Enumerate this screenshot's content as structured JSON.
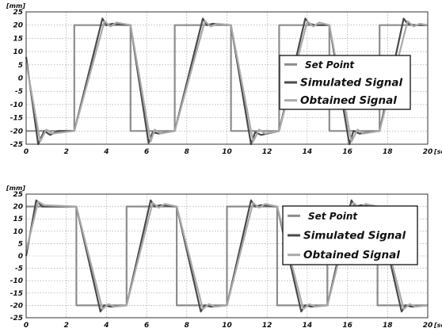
{
  "chart_data": [
    {
      "type": "line",
      "ylabel": "[mm]",
      "xlabel": "[seg]",
      "xlim": [
        0,
        20
      ],
      "ylim": [
        -25,
        25
      ],
      "xticks": [
        0,
        2,
        4,
        6,
        8,
        10,
        12,
        14,
        16,
        18,
        20
      ],
      "yticks": [
        25,
        20,
        15,
        10,
        5,
        0,
        -5,
        -10,
        -15,
        -20,
        -25
      ],
      "grid": true,
      "legend": "right",
      "series": [
        {
          "name": "Set Point",
          "color": "#8c8c8c",
          "x": [
            0,
            2.4,
            2.4,
            5.2,
            5.2,
            7.4,
            7.4,
            10.2,
            10.2,
            12.6,
            12.6,
            15.1,
            15.1,
            17.6,
            17.6,
            20
          ],
          "y": [
            -20,
            -20,
            20,
            20,
            -20,
            -20,
            20,
            20,
            -20,
            -20,
            20,
            20,
            -20,
            -20,
            20,
            20
          ]
        },
        {
          "name": "Simulated Signal",
          "color": "#4a4a4a",
          "x": [
            0,
            0.6,
            0.9,
            1.2,
            1.6,
            2.4,
            3.8,
            4.0,
            4.3,
            5.2,
            6.1,
            6.3,
            6.6,
            7.4,
            8.8,
            9.0,
            9.3,
            10.2,
            11.2,
            11.4,
            11.7,
            12.6,
            13.9,
            14.1,
            14.4,
            15.1,
            16.1,
            16.3,
            16.6,
            17.6,
            18.8,
            19.0,
            19.3,
            20
          ],
          "y": [
            8,
            -25,
            -20,
            -21.5,
            -20,
            -20,
            22.5,
            20,
            20.5,
            20,
            -24.5,
            -20.5,
            -21,
            -20,
            22.5,
            20,
            20.5,
            20,
            -25,
            -20.5,
            -21.5,
            -20,
            22.5,
            20.5,
            20,
            20,
            -25,
            -20,
            -21,
            -20,
            22.5,
            20.5,
            20,
            20
          ]
        },
        {
          "name": "Obtained Signal",
          "color": "#aaaaaa",
          "x": [
            0,
            0.7,
            1.0,
            1.3,
            2.4,
            3.9,
            4.2,
            4.5,
            5.2,
            6.2,
            6.4,
            6.7,
            7.4,
            8.9,
            9.2,
            9.5,
            10.2,
            11.3,
            11.6,
            11.9,
            12.6,
            14.0,
            14.3,
            14.6,
            15.1,
            16.2,
            16.5,
            16.8,
            17.6,
            19.0,
            19.3,
            19.6,
            20
          ],
          "y": [
            6,
            -24,
            -19.5,
            -21,
            -20,
            21.5,
            19.5,
            21,
            20,
            -24,
            -19.5,
            -21,
            -20,
            21.5,
            19.5,
            20.5,
            20,
            -24,
            -19.5,
            -21,
            -20,
            21.5,
            19.5,
            21,
            20,
            -24,
            -19.5,
            -21,
            -20,
            21.5,
            19.5,
            20.5,
            20
          ]
        }
      ]
    },
    {
      "type": "line",
      "ylabel": "[mm]",
      "xlabel": "[seg]",
      "xlim": [
        0,
        20
      ],
      "ylim": [
        -25,
        25
      ],
      "xticks": [
        0,
        2,
        4,
        6,
        8,
        10,
        12,
        14,
        16,
        18,
        20
      ],
      "yticks": [
        25,
        20,
        15,
        10,
        5,
        0,
        -5,
        -10,
        -15,
        -20,
        -25
      ],
      "grid": true,
      "legend": "right",
      "series": [
        {
          "name": "Set Point",
          "color": "#8c8c8c",
          "x": [
            0,
            2.5,
            2.5,
            5.0,
            5.0,
            7.5,
            7.5,
            10.0,
            10.0,
            12.5,
            12.5,
            15.0,
            15.0,
            17.5,
            17.5,
            20
          ],
          "y": [
            20,
            20,
            -20,
            -20,
            20,
            20,
            -20,
            -20,
            20,
            20,
            -20,
            -20,
            20,
            20,
            -20,
            -20
          ]
        },
        {
          "name": "Simulated Signal",
          "color": "#4a4a4a",
          "x": [
            0,
            0.5,
            0.8,
            2.5,
            3.7,
            3.9,
            4.2,
            5.0,
            6.2,
            6.4,
            6.7,
            7.5,
            8.7,
            8.9,
            9.2,
            10.0,
            11.2,
            11.4,
            11.7,
            12.5,
            13.7,
            13.9,
            14.2,
            15.0,
            16.2,
            16.4,
            16.7,
            17.5,
            18.7,
            18.9,
            19.2,
            20
          ],
          "y": [
            0,
            22.5,
            20,
            20,
            -22.5,
            -20,
            -20.5,
            -20,
            22.5,
            20,
            20.5,
            20,
            -22.5,
            -20,
            -20.5,
            -20,
            22.5,
            20,
            20.5,
            20,
            -22.5,
            -20,
            -20.5,
            -20,
            22.5,
            20,
            20.5,
            20,
            -22.5,
            -20,
            -20.5,
            -20
          ]
        },
        {
          "name": "Obtained Signal",
          "color": "#aaaaaa",
          "x": [
            0,
            0.6,
            0.9,
            2.5,
            3.8,
            4.1,
            4.4,
            5.0,
            6.3,
            6.6,
            6.9,
            7.5,
            8.8,
            9.1,
            9.4,
            10.0,
            11.3,
            11.6,
            11.9,
            12.5,
            13.8,
            14.1,
            14.4,
            15.0,
            16.3,
            16.6,
            16.9,
            17.5,
            18.8,
            19.1,
            19.4,
            20
          ],
          "y": [
            2,
            22,
            20.5,
            20,
            -21.5,
            -19.5,
            -20.5,
            -20,
            21.5,
            19.5,
            21,
            20,
            -21.5,
            -19.5,
            -20.5,
            -20,
            21.5,
            19.5,
            21,
            20,
            -21.5,
            -19.5,
            -20.5,
            -20,
            21.5,
            19.5,
            21,
            20,
            -21.5,
            -19.5,
            -20.5,
            -20
          ]
        }
      ]
    }
  ]
}
